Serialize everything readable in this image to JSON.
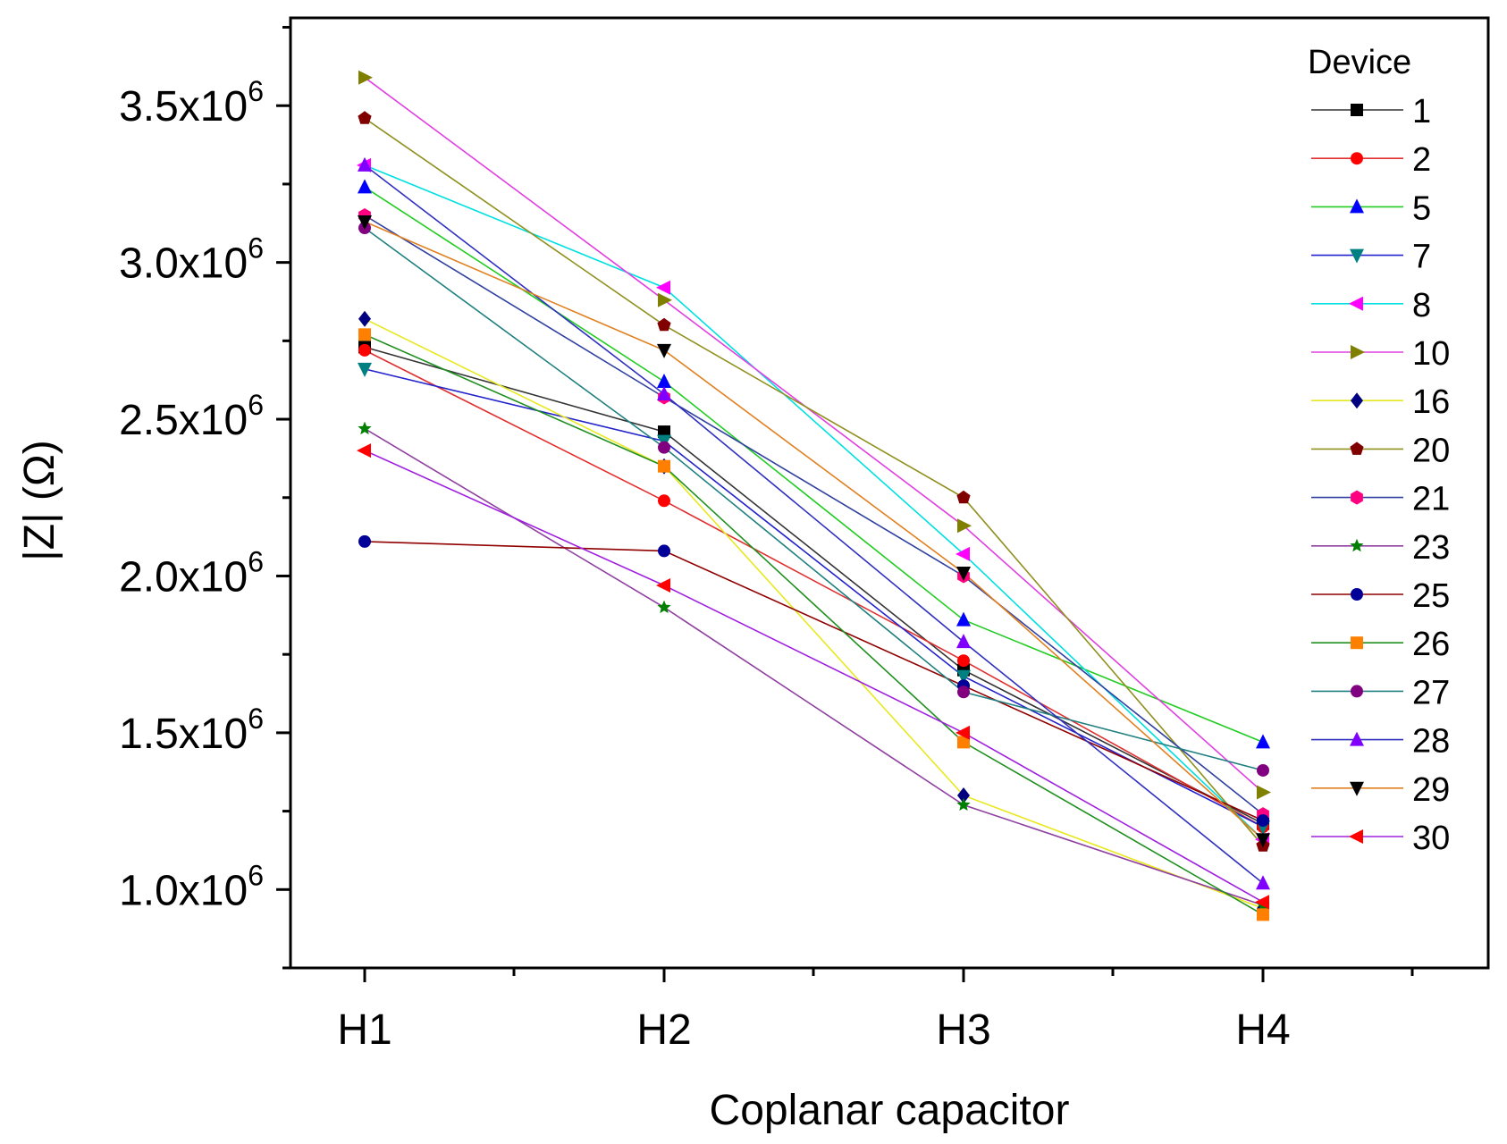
{
  "chart_data": {
    "type": "line",
    "title": "",
    "xlabel": "Coplanar capacitor",
    "ylabel": "|Z| (Ω)",
    "categories": [
      "H1",
      "H2",
      "H3",
      "H4"
    ],
    "ylim": [
      750000,
      3780000
    ],
    "yticks": [
      {
        "value": 1000000,
        "mant": "1.0x10",
        "exp": "6"
      },
      {
        "value": 1500000,
        "mant": "1.5x10",
        "exp": "6"
      },
      {
        "value": 2000000,
        "mant": "2.0x10",
        "exp": "6"
      },
      {
        "value": 2500000,
        "mant": "2.5x10",
        "exp": "6"
      },
      {
        "value": 3000000,
        "mant": "3.0x10",
        "exp": "6"
      },
      {
        "value": 3500000,
        "mant": "3.5x10",
        "exp": "6"
      }
    ],
    "legend_title": "Device",
    "legend_position": "top-right",
    "grid": false,
    "series": [
      {
        "name": "1",
        "color": "#000000",
        "marker": "square",
        "values": [
          2730000,
          2460000,
          1700000,
          1210000
        ]
      },
      {
        "name": "2",
        "color": "#ff0000",
        "marker": "circle",
        "values": [
          2720000,
          2240000,
          1730000,
          1200000
        ]
      },
      {
        "name": "5",
        "color": "#0000ff",
        "marker": "triangle-up",
        "values": [
          3240000,
          2620000,
          1860000,
          1470000
        ]
      },
      {
        "name": "7",
        "color": "#008080",
        "marker": "triangle-down",
        "values": [
          2660000,
          2430000,
          1680000,
          1200000
        ]
      },
      {
        "name": "8",
        "color": "#ff00ff",
        "marker": "triangle-left",
        "values": [
          3310000,
          2920000,
          2070000,
          1160000
        ]
      },
      {
        "name": "10",
        "color": "#808000",
        "marker": "triangle-right",
        "values": [
          3590000,
          2880000,
          2160000,
          1310000
        ]
      },
      {
        "name": "16",
        "color": "#000080",
        "marker": "diamond",
        "values": [
          2820000,
          2350000,
          1300000,
          940000
        ]
      },
      {
        "name": "20",
        "color": "#800000",
        "marker": "pentagon",
        "values": [
          3460000,
          2800000,
          2250000,
          1140000
        ]
      },
      {
        "name": "21",
        "color": "#ff0080",
        "marker": "hexagon",
        "values": [
          3150000,
          2570000,
          2000000,
          1240000
        ]
      },
      {
        "name": "23",
        "color": "#008000",
        "marker": "star",
        "values": [
          2470000,
          1900000,
          1270000,
          950000
        ]
      },
      {
        "name": "25",
        "color": "#000099",
        "marker": "sphere",
        "values": [
          2110000,
          2080000,
          1650000,
          1220000
        ]
      },
      {
        "name": "26",
        "color": "#ff8000",
        "marker": "square",
        "values": [
          2770000,
          2350000,
          1470000,
          920000
        ]
      },
      {
        "name": "27",
        "color": "#800080",
        "marker": "circle",
        "values": [
          3110000,
          2410000,
          1630000,
          1380000
        ]
      },
      {
        "name": "28",
        "color": "#8000ff",
        "marker": "triangle-up",
        "values": [
          3310000,
          2580000,
          1790000,
          1020000
        ]
      },
      {
        "name": "29",
        "color": "#000000",
        "marker": "triangle-down",
        "values": [
          3130000,
          2720000,
          2010000,
          1160000
        ]
      },
      {
        "name": "30",
        "color": "#ff0000",
        "marker": "triangle-left",
        "values": [
          2400000,
          1970000,
          1500000,
          960000
        ]
      }
    ],
    "line_colors": {
      "1": "#333333",
      "2": "#e03030",
      "5": "#22cc22",
      "7": "#2222cc",
      "8": "#00e0e0",
      "10": "#e040e0",
      "16": "#e8e820",
      "20": "#909020",
      "21": "#3040a0",
      "23": "#9040a0",
      "25": "#900000",
      "26": "#209020",
      "27": "#208080",
      "28": "#3030c0",
      "29": "#e08020",
      "30": "#a020e0"
    }
  }
}
